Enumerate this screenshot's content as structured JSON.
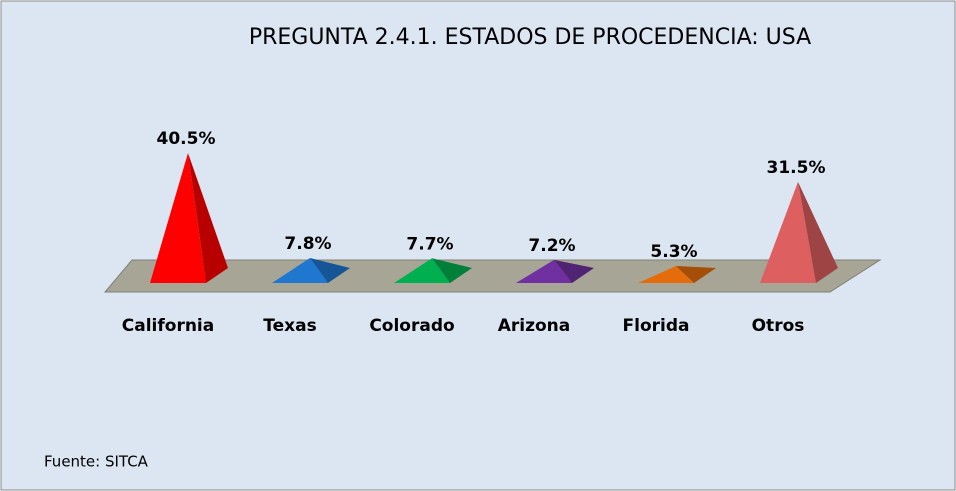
{
  "chart_data": {
    "type": "pyramid",
    "title": "PREGUNTA 2.4.1. ESTADOS DE PROCEDENCIA: USA",
    "categories": [
      "California",
      "Texas",
      "Colorado",
      "Arizona",
      "Florida",
      "Otros"
    ],
    "values": [
      40.5,
      7.8,
      7.7,
      7.2,
      5.3,
      31.5
    ],
    "value_labels": [
      "40.5%",
      "7.8%",
      "7.7%",
      "7.2%",
      "5.3%",
      "31.5%"
    ],
    "colors": [
      "#ff0000",
      "#1f77d0",
      "#00b050",
      "#7030a0",
      "#e46c0a",
      "#dd5f5f"
    ],
    "source": "Fuente: SITCA"
  }
}
